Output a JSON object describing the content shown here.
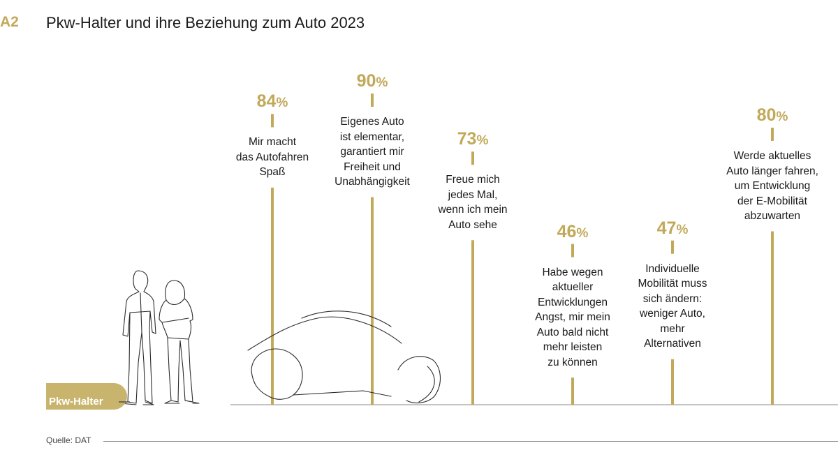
{
  "header": {
    "figure_number": "A2",
    "title": "Pkw-Halter und ihre Beziehung zum Auto 2023"
  },
  "legend": {
    "group_label": "Pkw-Halter"
  },
  "footer": {
    "source": "Quelle: DAT"
  },
  "colors": {
    "accent": "#c2a95a",
    "badge": "#c8b46c",
    "text": "#1a1a1a",
    "baseline": "#8a8a8a"
  },
  "icons": [
    "two-people-illustration",
    "car-outline-illustration"
  ],
  "chart_data": {
    "type": "bar",
    "title": "Pkw-Halter und ihre Beziehung zum Auto 2023",
    "unit": "%",
    "ylim": [
      0,
      100
    ],
    "grid": false,
    "categories": [
      "Mir macht das Autofahren Spaß",
      "Eigenes Auto ist elementar, garantiert mir Freiheit und Unabhängigkeit",
      "Freue mich jedes Mal, wenn ich mein Auto sehe",
      "Habe wegen aktueller Entwicklungen Angst, mir mein Auto bald nicht mehr leisten zu können",
      "Individuelle Mobilität muss sich ändern: weniger Auto, mehr Alternativen",
      "Werde aktuelles Auto länger fahren, um Entwicklung der E-Mobilität abzuwarten"
    ],
    "values": [
      84,
      90,
      73,
      46,
      47,
      80
    ],
    "value_labels": [
      "84",
      "90",
      "73",
      "46",
      "47",
      "80"
    ],
    "label_lines": [
      [
        "Mir macht",
        "das Autofahren",
        "Spaß"
      ],
      [
        "Eigenes Auto",
        "ist elementar,",
        "garantiert mir",
        "Freiheit und",
        "Unabhängigkeit"
      ],
      [
        "Freue mich",
        "jedes Mal,",
        "wenn ich mein",
        "Auto sehe"
      ],
      [
        "Habe wegen",
        "aktueller",
        "Entwicklungen",
        "Angst, mir mein",
        "Auto bald nicht",
        "mehr leisten",
        "zu können"
      ],
      [
        "Individuelle",
        "Mobilität muss",
        "sich ändern:",
        "weniger Auto,",
        "mehr",
        "Alternativen"
      ],
      [
        "Werde aktuelles",
        "Auto länger fahren,",
        "um Entwicklung",
        "der E-Mobilität",
        "abzuwarten"
      ]
    ]
  }
}
